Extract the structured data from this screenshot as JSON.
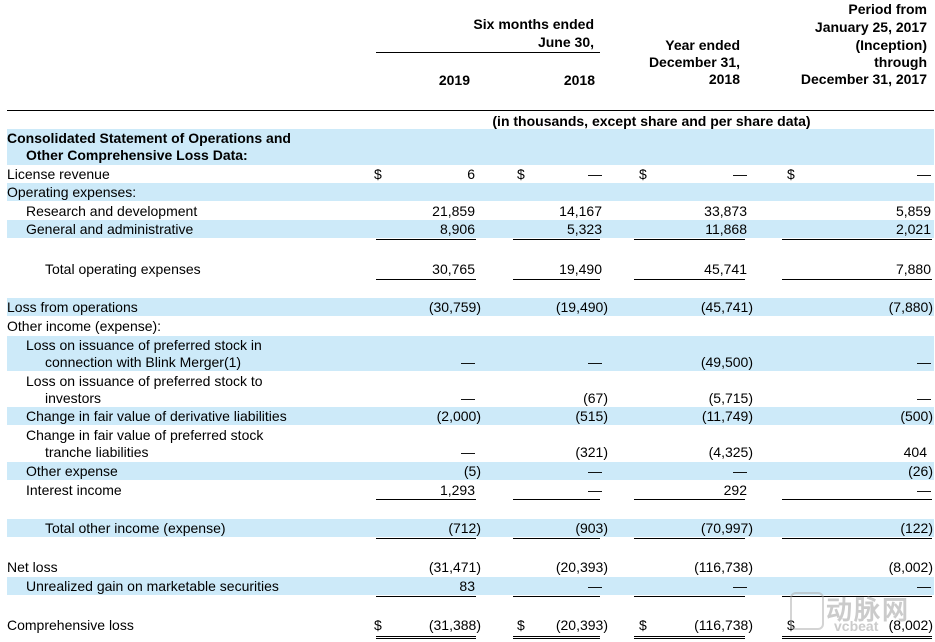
{
  "header": {
    "six_months_title": "Six months ended",
    "six_months_sub": "June 30,",
    "col_2019": "2019",
    "col_2018": "2018",
    "year_ended_1": "Year ended",
    "year_ended_2": "December 31,",
    "year_ended_3": "2018",
    "period_1": "Period from",
    "period_2": "January 25, 2017",
    "period_3": "(Inception)",
    "period_4": "through",
    "period_5": "December 31, 2017",
    "units_note": "(in thousands, except share and per share data)"
  },
  "section": {
    "title_1": "Consolidated Statement of Operations and",
    "title_2": "Other Comprehensive Loss Data:"
  },
  "rows": {
    "license_revenue": {
      "label": "License revenue",
      "dollar": "$",
      "c1": "6",
      "c2": "—",
      "c3": "—",
      "c4": "—"
    },
    "operating_expenses": {
      "label": "Operating expenses:"
    },
    "research": {
      "label": "Research and development",
      "c1": "21,859",
      "c2": "14,167",
      "c3": "33,873",
      "c4": "5,859"
    },
    "general": {
      "label": "General and administrative",
      "c1": "8,906",
      "c2": "5,323",
      "c3": "11,868",
      "c4": "2,021"
    },
    "total_operating": {
      "label": "Total operating expenses",
      "c1": "30,765",
      "c2": "19,490",
      "c3": "45,741",
      "c4": "7,880"
    },
    "loss_operations": {
      "label": "Loss from operations",
      "c1": "(30,759)",
      "c2": "(19,490)",
      "c3": "(45,741)",
      "c4": "(7,880)"
    },
    "other_income": {
      "label": "Other income (expense):"
    },
    "loss_blink": {
      "label_1": "Loss on issuance of preferred stock in",
      "label_2": "connection with Blink Merger(1)",
      "c1": "—",
      "c2": "—",
      "c3": "(49,500)",
      "c4": "—"
    },
    "loss_investors": {
      "label_1": "Loss on issuance of preferred stock to",
      "label_2": "investors",
      "c1": "—",
      "c2": "(67)",
      "c3": "(5,715)",
      "c4": "—"
    },
    "derivative": {
      "label": "Change in fair value of derivative liabilities",
      "c1": "(2,000)",
      "c2": "(515)",
      "c3": "(11,749)",
      "c4": "(500)"
    },
    "tranche": {
      "label_1": "Change in fair value of preferred stock",
      "label_2": "tranche liabilities",
      "c1": "—",
      "c2": "(321)",
      "c3": "(4,325)",
      "c4": "404"
    },
    "other_expense": {
      "label": "Other expense",
      "c1": "(5)",
      "c2": "—",
      "c3": "—",
      "c4": "(26)"
    },
    "interest_income": {
      "label": "Interest income",
      "c1": "1,293",
      "c2": "—",
      "c3": "292",
      "c4": "—"
    },
    "total_other": {
      "label": "Total other income (expense)",
      "c1": "(712)",
      "c2": "(903)",
      "c3": "(70,997)",
      "c4": "(122)"
    },
    "net_loss": {
      "label": "Net loss",
      "c1": "(31,471)",
      "c2": "(20,393)",
      "c3": "(116,738)",
      "c4": "(8,002)"
    },
    "unrealized": {
      "label": "Unrealized gain on marketable securities",
      "c1": "83",
      "c2": "—",
      "c3": "—",
      "c4": "—"
    },
    "comprehensive": {
      "label": "Comprehensive loss",
      "dollar": "$",
      "c1": "(31,388)",
      "c2": "(20,393)",
      "c3": "(116,738)",
      "c4": "(8,002)"
    }
  },
  "watermark": {
    "text_cn": "动脉网",
    "text_en": "vcbeat"
  }
}
